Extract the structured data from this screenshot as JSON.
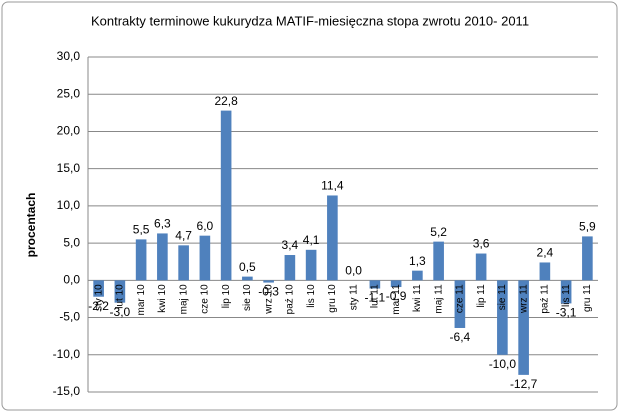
{
  "chart_data": {
    "type": "bar",
    "title": "Kontrakty terminowe  kukurydza MATIF-miesięczna stopa zwrotu 2010- 2011",
    "y_label": "procentach",
    "categories": [
      "sty 10",
      "lut 10",
      "mar 10",
      "kwi 10",
      "maj 10",
      "cze 10",
      "lip 10",
      "sie 10",
      "wrz 10",
      "paź 10",
      "lis 10",
      "gru 10",
      "sty 11",
      "lut 11",
      "mar 11",
      "kwi 11",
      "maj 11",
      "cze 11",
      "lip 11",
      "sie 11",
      "wrz 11",
      "paź 11",
      "lis 11",
      "gru 11"
    ],
    "values": [
      -2.2,
      -3.0,
      5.5,
      6.3,
      4.7,
      6.0,
      22.8,
      0.5,
      -0.3,
      3.4,
      4.1,
      11.4,
      0.0,
      -1.1,
      -0.9,
      1.3,
      5.2,
      -6.4,
      3.6,
      -10.0,
      -12.7,
      2.4,
      -3.1,
      5.9
    ],
    "value_labels": [
      "-2,2",
      "-3,0",
      "5,5",
      "6,3",
      "4,7",
      "6,0",
      "22,8",
      "0,5",
      "-0,3",
      "3,4",
      "4,1",
      "11,4",
      "0,0",
      "-1,1",
      "-0,9",
      "1,3",
      "5,2",
      "-6,4",
      "3,6",
      "-10,0",
      "-12,7",
      "2,4",
      "-3,1",
      "5,9"
    ],
    "color": "#4f81bd",
    "ylim": [
      -15,
      30
    ],
    "yticks": [
      {
        "value": -15,
        "label": "-15,0"
      },
      {
        "value": -10,
        "label": "-10,0"
      },
      {
        "value": -5,
        "label": "-5,0"
      },
      {
        "value": 0,
        "label": "0,0"
      },
      {
        "value": 5,
        "label": "5,0"
      },
      {
        "value": 10,
        "label": "10,0"
      },
      {
        "value": 15,
        "label": "15,0"
      },
      {
        "value": 20,
        "label": "20,0"
      },
      {
        "value": 25,
        "label": "25,0"
      },
      {
        "value": 30,
        "label": "30,0"
      }
    ],
    "grid": true
  }
}
